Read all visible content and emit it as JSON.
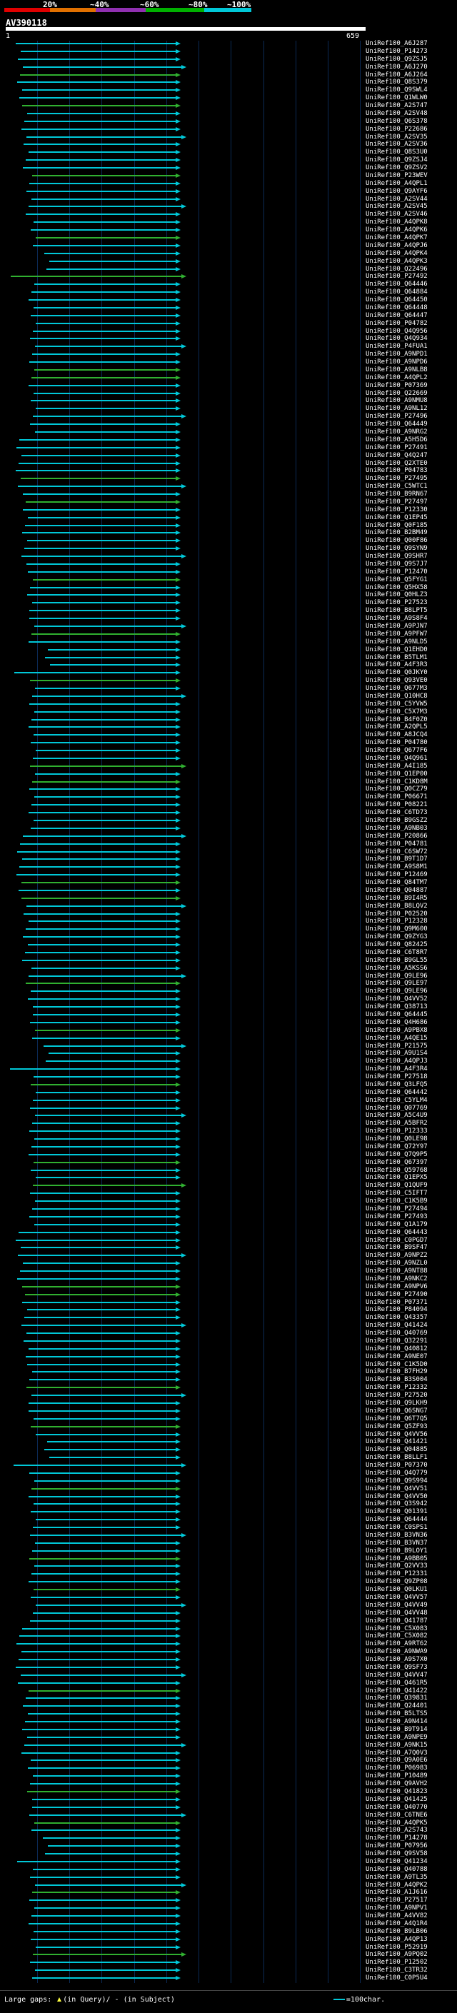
{
  "colors": {
    "scale": [
      "#e00000",
      "#e07000",
      "#9030b0",
      "#00b000",
      "#00c8d8"
    ],
    "line_high": "#00c8d8",
    "line_mid": "#30b030",
    "grid": "#0b2a55",
    "background": "#000000"
  },
  "scale_labels": [
    "20%",
    "~40%",
    "~60%",
    "~80%",
    "~100%"
  ],
  "query_title": "AV390118",
  "ruler": {
    "start": "1",
    "end": "659"
  },
  "legend": {
    "text_before": "Large gaps:",
    "query_text": "(in Query)/",
    "subject_text": "(in Subject)",
    "scale_text": "=100char."
  },
  "hits": [
    "UniRef100_A6J287",
    "UniRef100_P14273",
    "UniRef100_Q9ZSJ5",
    "UniRef100_A6J270",
    "UniRef100_A6J264",
    "UniRef100_Q8S379",
    "UniRef100_Q9SWL4",
    "UniRef100_Q1WLW0",
    "UniRef100_A2S747",
    "UniRef100_A2SV48",
    "UniRef100_Q6S378",
    "UniRef100_P22686",
    "UniRef100_A2SV35",
    "UniRef100_A2SV36",
    "UniRef100_Q8S3U0",
    "UniRef100_Q9ZSJ4",
    "UniRef100_Q9ZSV2",
    "UniRef100_P23WEV",
    "UniRef100_A4QPL1",
    "UniRef100_Q9AYF6",
    "UniRef100_A2SV44",
    "UniRef100_A2SV45",
    "UniRef100_A2SV46",
    "UniRef100_A4QPK8",
    "UniRef100_A4QPK6",
    "UniRef100_A4QPK7",
    "UniRef100_A4QPJ6",
    "UniRef100_A4QPK4",
    "UniRef100_A4QPK3",
    "UniRef100_Q22496",
    "UniRef100_P27492",
    "UniRef100_Q64446",
    "UniRef100_Q64884",
    "UniRef100_Q64450",
    "UniRef100_Q64448",
    "UniRef100_Q64447",
    "UniRef100_P04782",
    "UniRef100_Q4Q956",
    "UniRef100_Q4Q934",
    "UniRef100_P4FUA1",
    "UniRef100_A9NPD1",
    "UniRef100_A9NPD6",
    "UniRef100_A9NLB8",
    "UniRef100_A4QPL2",
    "UniRef100_P07369",
    "UniRef100_Q22669",
    "UniRef100_A9NMU8",
    "UniRef100_A9NL12",
    "UniRef100_P27496",
    "UniRef100_Q64449",
    "UniRef100_A9NRG2",
    "UniRef100_A5H5D6",
    "UniRef100_P27491",
    "UniRef100_Q4Q247",
    "UniRef100_Q2XTE0",
    "UniRef100_P04783",
    "UniRef100_P27495",
    "UniRef100_C5WTC1",
    "UniRef100_B9RN67",
    "UniRef100_P27497",
    "UniRef100_P12330",
    "UniRef100_Q1EP45",
    "UniRef100_Q0F185",
    "UniRef100_B2BM49",
    "UniRef100_Q00F86",
    "UniRef100_Q9SYN9",
    "UniRef100_Q9SHR7",
    "UniRef100_Q9S7J7",
    "UniRef100_P12470",
    "UniRef100_Q5FYG1",
    "UniRef100_Q5HX58",
    "UniRef100_Q0HLZ3",
    "UniRef100_P27523",
    "UniRef100_B8LPT5",
    "UniRef100_A9S8F4",
    "UniRef100_A9PJN7",
    "UniRef100_A9PFW7",
    "UniRef100_A9NLD5",
    "UniRef100_Q1EHD0",
    "UniRef100_B5TLM1",
    "UniRef100_A4F3R3",
    "UniRef100_Q0JKY0",
    "UniRef100_Q93VE0",
    "UniRef100_Q677M3",
    "UniRef100_Q10HC8",
    "UniRef100_C5YVW5",
    "UniRef100_C5X7M3",
    "UniRef100_B4F0Z0",
    "UniRef100_A2QPL5",
    "UniRef100_A8JCQ4",
    "UniRef100_P04780",
    "UniRef100_Q677F6",
    "UniRef100_Q4Q961",
    "UniRef100_A4I185",
    "UniRef100_Q1EP00",
    "UniRef100_C1KD8M",
    "UniRef100_Q0CZ79",
    "UniRef100_P06671",
    "UniRef100_P08221",
    "UniRef100_C6TD73",
    "UniRef100_B9GSZ2",
    "UniRef100_A9NB03",
    "UniRef100_P20866",
    "UniRef100_P04781",
    "UniRef100_C6SW72",
    "UniRef100_B9T1D7",
    "UniRef100_A9S8M1",
    "UniRef100_P12469",
    "UniRef100_Q84TM7",
    "UniRef100_Q04887",
    "UniRef100_B9I4R5",
    "UniRef100_B8LQV2",
    "UniRef100_P02520",
    "UniRef100_P12328",
    "UniRef100_Q9M600",
    "UniRef100_Q9ZYG3",
    "UniRef100_Q82425",
    "UniRef100_C6T8R7",
    "UniRef100_B9GL55",
    "UniRef100_A5KSS6",
    "UniRef100_Q9LE96",
    "UniRef100_Q9LE97",
    "UniRef100_Q9LE96",
    "UniRef100_Q4VV52",
    "UniRef100_Q38713",
    "UniRef100_Q64445",
    "UniRef100_Q4H686",
    "UniRef100_A9PBX8",
    "UniRef100_A4QE15",
    "UniRef100_P21575",
    "UniRef100_A9U1S4",
    "UniRef100_A4QPJ3",
    "UniRef100_A4F3R4",
    "UniRef100_P27518",
    "UniRef100_Q3LFQ5",
    "UniRef100_Q64442",
    "UniRef100_C5YLM4",
    "UniRef100_Q07769",
    "UniRef100_A5C4U9",
    "UniRef100_A5BFR2",
    "UniRef100_P12333",
    "UniRef100_Q0LE98",
    "UniRef100_Q72Y97",
    "UniRef100_Q7Q9P5",
    "UniRef100_Q67397",
    "UniRef100_Q59768",
    "UniRef100_Q1EPX5",
    "UniRef100_Q1QUF9",
    "UniRef100_C5IFT7",
    "UniRef100_C1K5B9",
    "UniRef100_P27494",
    "UniRef100_P27493",
    "UniRef100_Q1A179",
    "UniRef100_Q64443",
    "UniRef100_C0PGD7",
    "UniRef100_B9SF47",
    "UniRef100_A9NPZ2",
    "UniRef100_A9NZL0",
    "UniRef100_A9NT88",
    "UniRef100_A9NKC2",
    "UniRef100_A9NPV6",
    "UniRef100_P27490",
    "UniRef100_P07371",
    "UniRef100_P84094",
    "UniRef100_Q43357",
    "UniRef100_Q41424",
    "UniRef100_Q40769",
    "UniRef100_Q32291",
    "UniRef100_Q40812",
    "UniRef100_A9NE07",
    "UniRef100_C1K5D0",
    "UniRef100_B7FH29",
    "UniRef100_B3S004",
    "UniRef100_P12332",
    "UniRef100_P27520",
    "UniRef100_Q9LKH9",
    "UniRef100_Q6SNG7",
    "UniRef100_Q6T7Q5",
    "UniRef100_Q5ZF93",
    "UniRef100_Q4VV56",
    "UniRef100_Q41421",
    "UniRef100_Q04885",
    "UniRef100_B8LLF1",
    "UniRef100_P07370",
    "UniRef100_Q4Q779",
    "UniRef100_Q9S994",
    "UniRef100_Q4VV51",
    "UniRef100_Q4VV50",
    "UniRef100_Q3S942",
    "UniRef100_Q01391",
    "UniRef100_Q64444",
    "UniRef100_C0SPS1",
    "UniRef100_B3VN36",
    "UniRef100_B3VN37",
    "UniRef100_B9LOY1",
    "UniRef100_A9BB05",
    "UniRef100_Q2VV33",
    "UniRef100_P12331",
    "UniRef100_Q9ZP08",
    "UniRef100_Q0LKU1",
    "UniRef100_Q4VV57",
    "UniRef100_Q4VV49",
    "UniRef100_Q4VV48",
    "UniRef100_Q41787",
    "UniRef100_C5X083",
    "UniRef100_C5X082",
    "UniRef100_A9RT62",
    "UniRef100_A9NWA9",
    "UniRef100_A9S7X0",
    "UniRef100_Q9SF73",
    "UniRef100_Q4VV47",
    "UniRef100_Q461R5",
    "UniRef100_Q41422",
    "UniRef100_Q39831",
    "UniRef100_Q24401",
    "UniRef100_B5LTS5",
    "UniRef100_A9N414",
    "UniRef100_B9T914",
    "UniRef100_A9NPE9",
    "UniRef100_A9NK15",
    "UniRef100_A7Q0V3",
    "UniRef100_Q9A0E6",
    "UniRef100_P06983",
    "UniRef100_P10489",
    "UniRef100_Q9AVH2",
    "UniRef100_Q41823",
    "UniRef100_Q41425",
    "UniRef100_Q40770",
    "UniRef100_C6TNE6",
    "UniRef100_A4QPK5",
    "UniRef100_A2S743",
    "UniRef100_P14278",
    "UniRef100_P07956",
    "UniRef100_Q9SV58",
    "UniRef100_Q41234",
    "UniRef100_Q40788",
    "UniRef100_A9TL35",
    "UniRef100_A4QPK2",
    "UniRef100_A1J616",
    "UniRef100_P27517",
    "UniRef100_A9NPV1",
    "UniRef100_A4VV82",
    "UniRef100_A4Q1R4",
    "UniRef100_B9LB06",
    "UniRef100_A4QP13",
    "UniRef100_P52919",
    "UniRef100_A9PQ02",
    "UniRef100_P12502",
    "UniRef100_C3TR32",
    "UniRef100_C0P5U4"
  ]
}
